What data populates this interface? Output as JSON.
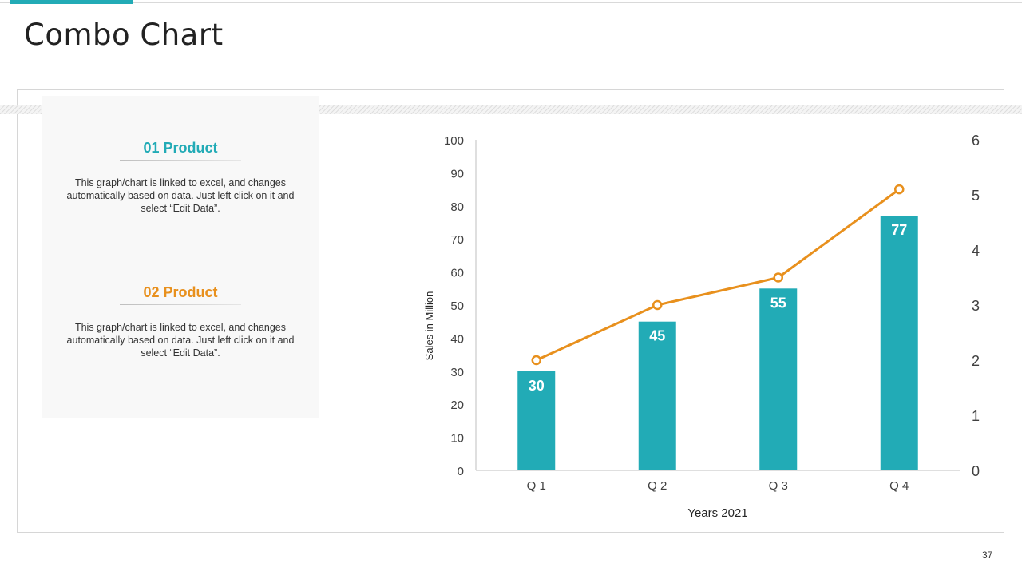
{
  "slide": {
    "title": "Combo Chart",
    "page_number": "37"
  },
  "panel": {
    "products": [
      {
        "title": "01 Product",
        "description": "This graph/chart is linked to excel, and changes automatically based on data. Just left click on it and select “Edit Data”."
      },
      {
        "title": "02 Product",
        "description": "This graph/chart is linked to excel, and changes automatically based on data. Just left click on it and select “Edit Data”."
      }
    ]
  },
  "colors": {
    "accent": "#22abb6",
    "bar": "#22abb6",
    "line": "#e8901d"
  },
  "chart_data": {
    "type": "bar",
    "title": "",
    "categories": [
      "Q 1",
      "Q 2",
      "Q 3",
      "Q 4"
    ],
    "series": [
      {
        "name": "01 Product",
        "type": "bar",
        "axis": "left",
        "values": [
          30,
          45,
          55,
          77
        ],
        "data_labels": [
          "30",
          "45",
          "55",
          "77"
        ]
      },
      {
        "name": "02 Product",
        "type": "line",
        "axis": "right",
        "values": [
          2.0,
          3.0,
          3.5,
          5.1
        ]
      }
    ],
    "xlabel": "Years 2021",
    "ylabel": "Sales in Million",
    "ylim": [
      0,
      100
    ],
    "y_ticks": [
      0,
      10,
      20,
      30,
      40,
      50,
      60,
      70,
      80,
      90,
      100
    ],
    "y2lim": [
      0,
      6
    ],
    "y2_ticks": [
      0,
      1,
      2,
      3,
      4,
      5,
      6
    ],
    "grid": false,
    "legend": "none"
  }
}
